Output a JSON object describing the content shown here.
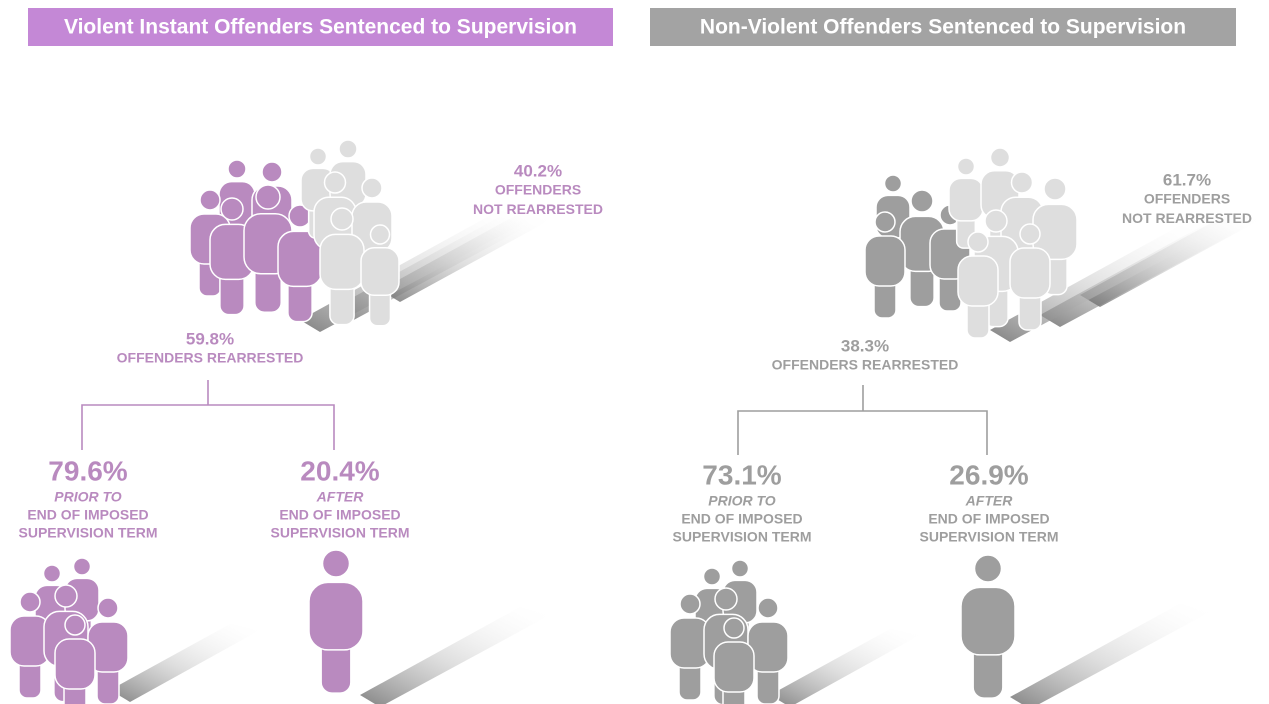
{
  "panels": [
    {
      "title": "Violent Instant Offenders Sentenced to Supervision",
      "color": "#b98abf",
      "title_color": "#c488d6",
      "light_color": "#dedede",
      "not_rearrested": {
        "value": "40.2%",
        "label": [
          "OFFENDERS",
          "NOT REARRESTED"
        ]
      },
      "rearrested": {
        "value": "59.8%",
        "label": [
          "OFFENDERS REARRESTED"
        ]
      },
      "prior": {
        "value": "79.6%",
        "qualifier": "PRIOR TO",
        "label": [
          "END OF IMPOSED",
          "SUPERVISION TERM"
        ]
      },
      "after": {
        "value": "20.4%",
        "qualifier": "AFTER",
        "label": [
          "END OF IMPOSED",
          "SUPERVISION TERM"
        ]
      }
    },
    {
      "title": "Non-Violent Offenders Sentenced to Supervision",
      "color": "#9e9e9e",
      "title_color": "#a3a3a3",
      "light_color": "#dedede",
      "not_rearrested": {
        "value": "61.7%",
        "label": [
          "OFFENDERS",
          "NOT REARRESTED"
        ]
      },
      "rearrested": {
        "value": "38.3%",
        "label": [
          "OFFENDERS REARRESTED"
        ]
      },
      "prior": {
        "value": "73.1%",
        "qualifier": "PRIOR TO",
        "label": [
          "END OF IMPOSED",
          "SUPERVISION TERM"
        ]
      },
      "after": {
        "value": "26.9%",
        "qualifier": "AFTER",
        "label": [
          "END OF IMPOSED",
          "SUPERVISION TERM"
        ]
      }
    }
  ]
}
